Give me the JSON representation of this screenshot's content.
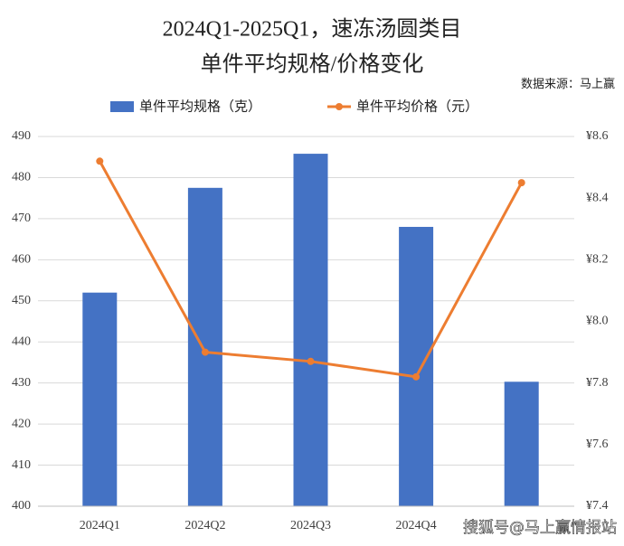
{
  "chart_data": {
    "type": "bar-line",
    "title": "2024Q1-2025Q1，速冻汤圆类目",
    "subtitle": "单件平均规格/价格变化",
    "source": "数据来源：马上赢",
    "watermark": "搜狐号@马上赢情报站",
    "categories": [
      "2024Q1",
      "2024Q2",
      "2024Q3",
      "2024Q4",
      null
    ],
    "series": [
      {
        "name": "单件平均规格（克）",
        "type": "bar",
        "color": "#4472c4",
        "values": [
          452,
          477.5,
          485.8,
          468,
          430.3
        ]
      },
      {
        "name": "单件平均价格（元）",
        "type": "line",
        "color": "#ed7d31",
        "axis": "y2",
        "values": [
          8.52,
          7.9,
          7.87,
          7.82,
          8.45
        ]
      }
    ],
    "ylim": [
      400,
      490
    ],
    "yticks": [
      400,
      410,
      420,
      430,
      440,
      450,
      460,
      470,
      480,
      490
    ],
    "y2lim": [
      7.4,
      8.6
    ],
    "y2ticks": [
      {
        "value": 7.4,
        "label": "¥7.4"
      },
      {
        "value": 7.6,
        "label": "¥7.6"
      },
      {
        "value": 7.8,
        "label": "¥7.8"
      },
      {
        "value": 8.0,
        "label": "¥8.0"
      },
      {
        "value": 8.2,
        "label": "¥8.2"
      },
      {
        "value": 8.4,
        "label": "¥8.4"
      },
      {
        "value": 8.6,
        "label": "¥8.6"
      }
    ],
    "grid": true
  }
}
